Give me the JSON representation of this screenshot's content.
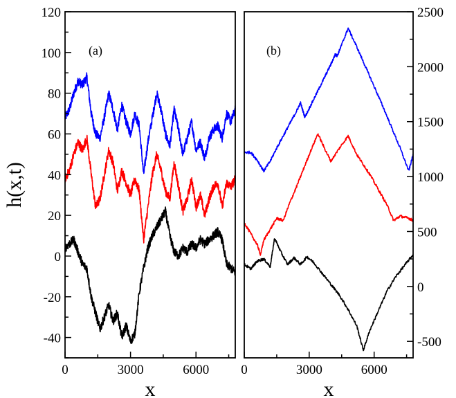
{
  "chart_data": [
    {
      "panel": "(a)",
      "type": "line",
      "xlabel": "x",
      "ylabel": "h(x,t)",
      "xlim": [
        0,
        7800
      ],
      "ylim": [
        -50,
        120
      ],
      "xticks": [
        0,
        3000,
        6000
      ],
      "yticks": [
        -40,
        -20,
        0,
        20,
        40,
        60,
        80,
        100,
        120
      ],
      "grid": false,
      "series": [
        {
          "color": "#0000ff",
          "x": [
            0,
            200,
            400,
            600,
            800,
            1000,
            1200,
            1400,
            1600,
            1800,
            2000,
            2200,
            2400,
            2600,
            2800,
            3000,
            3200,
            3400,
            3600,
            3800,
            4000,
            4200,
            4400,
            4600,
            4800,
            5000,
            5200,
            5400,
            5600,
            5800,
            6000,
            6200,
            6400,
            6600,
            6800,
            7000,
            7200,
            7400,
            7600,
            7800
          ],
          "y": [
            68,
            72,
            80,
            86,
            84,
            88,
            70,
            60,
            58,
            68,
            80,
            72,
            62,
            74,
            66,
            60,
            70,
            64,
            40,
            56,
            68,
            80,
            72,
            60,
            54,
            72,
            62,
            50,
            58,
            66,
            52,
            56,
            48,
            58,
            62,
            64,
            58,
            70,
            66,
            72
          ]
        },
        {
          "color": "#ff0000",
          "x": [
            0,
            200,
            400,
            600,
            800,
            1000,
            1200,
            1400,
            1600,
            1800,
            2000,
            2200,
            2400,
            2600,
            2800,
            3000,
            3200,
            3400,
            3600,
            3800,
            4000,
            4200,
            4400,
            4600,
            4800,
            5000,
            5200,
            5400,
            5600,
            5800,
            6000,
            6200,
            6400,
            6600,
            6800,
            7000,
            7200,
            7400,
            7600,
            7800
          ],
          "y": [
            38,
            42,
            50,
            56,
            52,
            58,
            40,
            24,
            28,
            40,
            52,
            46,
            32,
            42,
            36,
            30,
            38,
            32,
            8,
            24,
            40,
            50,
            42,
            32,
            28,
            46,
            34,
            22,
            28,
            38,
            24,
            30,
            20,
            28,
            34,
            36,
            24,
            36,
            34,
            38
          ]
        },
        {
          "color": "#000000",
          "x": [
            0,
            200,
            400,
            600,
            800,
            1000,
            1200,
            1400,
            1600,
            1800,
            2000,
            2200,
            2400,
            2600,
            2800,
            3000,
            3200,
            3400,
            3600,
            3800,
            4000,
            4200,
            4400,
            4600,
            4800,
            5000,
            5200,
            5400,
            5600,
            5800,
            6000,
            6200,
            6400,
            6600,
            6800,
            7000,
            7200,
            7400,
            7600,
            7800
          ],
          "y": [
            4,
            6,
            8,
            2,
            -4,
            -6,
            -20,
            -28,
            -36,
            -30,
            -24,
            -32,
            -28,
            -40,
            -34,
            -42,
            -38,
            -18,
            -6,
            4,
            10,
            14,
            18,
            22,
            10,
            2,
            0,
            4,
            2,
            6,
            4,
            8,
            6,
            8,
            10,
            12,
            8,
            -4,
            -6,
            -8
          ]
        }
      ]
    },
    {
      "panel": "(b)",
      "type": "line",
      "xlabel": "x",
      "xlim": [
        0,
        7800
      ],
      "ylim": [
        -650,
        2500
      ],
      "xticks": [
        0,
        3000,
        6000
      ],
      "yticks": [
        -500,
        0,
        500,
        1000,
        1500,
        2000,
        2500
      ],
      "grid": false,
      "series": [
        {
          "color": "#0000ff",
          "x": [
            0,
            300,
            600,
            900,
            1200,
            1500,
            1800,
            2100,
            2400,
            2600,
            2800,
            3100,
            3400,
            3700,
            4000,
            4200,
            4300,
            4500,
            4800,
            5200,
            5600,
            6000,
            6400,
            6800,
            7200,
            7600,
            7800
          ],
          "y": [
            1220,
            1220,
            1150,
            1050,
            1140,
            1260,
            1370,
            1480,
            1590,
            1670,
            1540,
            1660,
            1780,
            1900,
            2020,
            2110,
            2100,
            2200,
            2350,
            2180,
            2000,
            1820,
            1640,
            1450,
            1260,
            1050,
            1200
          ]
        },
        {
          "color": "#ff0000",
          "x": [
            0,
            300,
            600,
            750,
            900,
            1200,
            1500,
            1800,
            2100,
            2400,
            2700,
            3000,
            3400,
            3700,
            4000,
            4400,
            4800,
            5200,
            5500,
            5800,
            6200,
            6600,
            6900,
            7200,
            7600,
            7800
          ],
          "y": [
            580,
            480,
            380,
            290,
            420,
            520,
            620,
            600,
            760,
            900,
            1050,
            1200,
            1390,
            1260,
            1140,
            1260,
            1370,
            1200,
            1110,
            1020,
            880,
            740,
            600,
            640,
            620,
            600
          ]
        },
        {
          "color": "#000000",
          "x": [
            0,
            300,
            600,
            900,
            1200,
            1400,
            1700,
            2000,
            2300,
            2600,
            2900,
            3200,
            3600,
            4000,
            4400,
            4800,
            5200,
            5500,
            5800,
            6200,
            6600,
            7000,
            7400,
            7800
          ],
          "y": [
            200,
            160,
            230,
            250,
            180,
            440,
            310,
            200,
            260,
            200,
            270,
            220,
            120,
            20,
            -80,
            -210,
            -360,
            -580,
            -400,
            -220,
            -40,
            90,
            190,
            290
          ]
        }
      ]
    }
  ],
  "panel_a": {
    "label": "(a)",
    "ylabel": "h(x,t)",
    "xlabel": "x",
    "xtick_labels": [
      "0",
      "3000",
      "6000"
    ],
    "ytick_labels": [
      "-40",
      "-20",
      "0",
      "20",
      "40",
      "60",
      "80",
      "100",
      "120"
    ]
  },
  "panel_b": {
    "label": "(b)",
    "xlabel": "x",
    "xtick_labels": [
      "0",
      "3000",
      "6000"
    ],
    "ytick_labels": [
      "-500",
      "0",
      "500",
      "1000",
      "1500",
      "2000",
      "2500"
    ]
  }
}
